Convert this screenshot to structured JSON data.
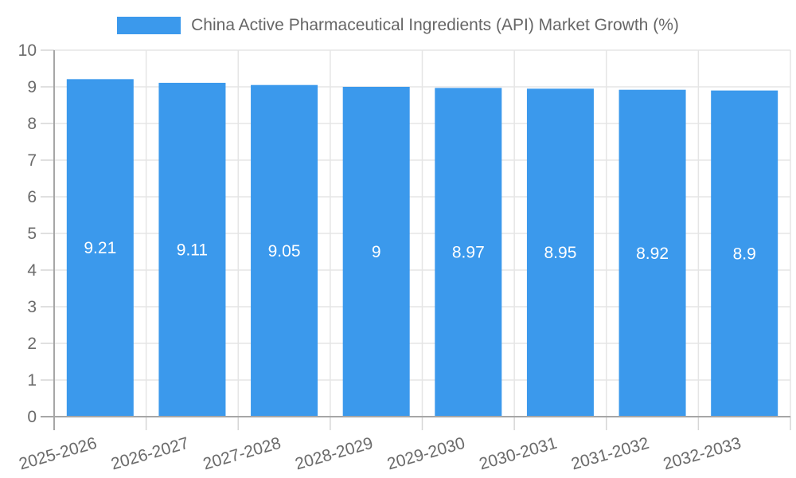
{
  "legend": {
    "label": "China Active Pharmaceutical Ingredients (API) Market Growth (%)"
  },
  "chart_data": {
    "type": "bar",
    "title": "China Active Pharmaceutical Ingredients (API) Market Growth (%)",
    "series_name": "China Active Pharmaceutical Ingredients (API) Market Growth (%)",
    "categories": [
      "2025-2026",
      "2026-2027",
      "2027-2028",
      "2028-2029",
      "2029-2030",
      "2030-2031",
      "2031-2032",
      "2032-2033"
    ],
    "values": [
      9.21,
      9.11,
      9.05,
      9,
      8.97,
      8.95,
      8.92,
      8.9
    ],
    "value_labels": [
      "9.21",
      "9.11",
      "9.05",
      "9",
      "8.97",
      "8.95",
      "8.92",
      "8.9"
    ],
    "xlabel": "",
    "ylabel": "",
    "ylim": [
      0,
      10
    ],
    "yticks": [
      0,
      1,
      2,
      3,
      4,
      5,
      6,
      7,
      8,
      9,
      10
    ],
    "grid": true,
    "legend_position": "top",
    "value_labels_shown": true,
    "colors": {
      "bar": "#3b99ec",
      "grid": "#e5e5e5",
      "axis": "#a6a6a6",
      "tick": "#d6d6d6",
      "tick_label": "#6b6b6b",
      "value_label": "#ffffff",
      "legend_text": "#666666",
      "background": "#ffffff"
    }
  }
}
